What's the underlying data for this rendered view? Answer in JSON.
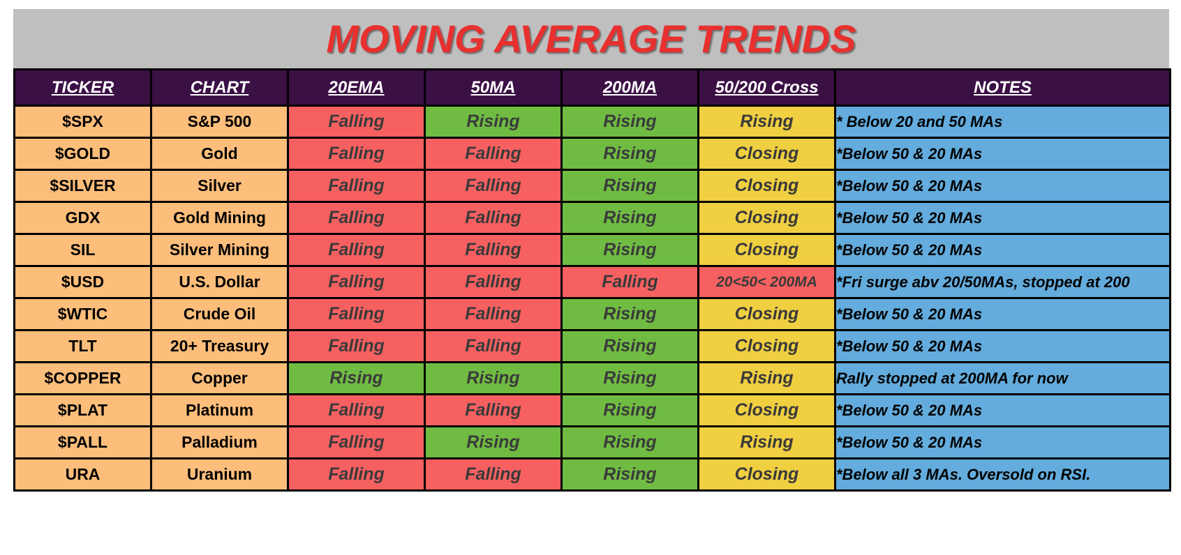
{
  "title": "MOVING AVERAGE TRENDS",
  "colors": {
    "title_bar_bg": "#bfbfbf",
    "title_text": "#e8302f",
    "header_bg": "#3b1045",
    "ticker_bg": "#fdbe7b",
    "notes_bg": "#63acdd",
    "Falling": "#f76060",
    "Rising": "#70bc43",
    "Closing": "#f0cf41",
    "Cross-Rising": "#f0cf41",
    "Cross-Falling": "#f76060"
  },
  "chart_data": {
    "type": "table",
    "columns": [
      "TICKER",
      "CHART",
      "20EMA",
      "50MA",
      "200MA",
      "50/200 Cross",
      "NOTES"
    ],
    "rows": [
      [
        "$SPX",
        "S&P 500",
        "Falling",
        "Rising",
        "Rising",
        "Rising",
        "* Below 20 and 50 MAs"
      ],
      [
        "$GOLD",
        "Gold",
        "Falling",
        "Falling",
        "Rising",
        "Closing",
        "*Below 50 & 20 MAs"
      ],
      [
        "$SILVER",
        "Silver",
        "Falling",
        "Falling",
        "Rising",
        "Closing",
        "*Below 50 & 20 MAs"
      ],
      [
        "GDX",
        "Gold Mining",
        "Falling",
        "Falling",
        "Rising",
        "Closing",
        "*Below 50 & 20 MAs"
      ],
      [
        "SIL",
        "Silver Mining",
        "Falling",
        "Falling",
        "Rising",
        "Closing",
        "*Below 50 & 20 MAs"
      ],
      [
        "$USD",
        "U.S. Dollar",
        "Falling",
        "Falling",
        "Falling",
        "20<50< 200MA",
        "*Fri surge abv 20/50MAs, stopped at 200"
      ],
      [
        "$WTIC",
        "Crude Oil",
        "Falling",
        "Falling",
        "Rising",
        "Closing",
        "*Below 50 & 20 MAs"
      ],
      [
        "TLT",
        "20+ Treasury",
        "Falling",
        "Falling",
        "Rising",
        "Closing",
        "*Below 50 & 20 MAs"
      ],
      [
        "$COPPER",
        "Copper",
        "Rising",
        "Rising",
        "Rising",
        "Rising",
        "Rally stopped at 200MA for now"
      ],
      [
        "$PLAT",
        "Platinum",
        "Falling",
        "Falling",
        "Rising",
        "Closing",
        "*Below 50 & 20 MAs"
      ],
      [
        "$PALL",
        "Palladium",
        "Falling",
        "Rising",
        "Rising",
        "Rising",
        "*Below 50 & 20 MAs"
      ],
      [
        "URA",
        "Uranium",
        "Falling",
        "Falling",
        "Rising",
        "Closing",
        "*Below all 3 MAs. Oversold on RSI."
      ]
    ]
  }
}
